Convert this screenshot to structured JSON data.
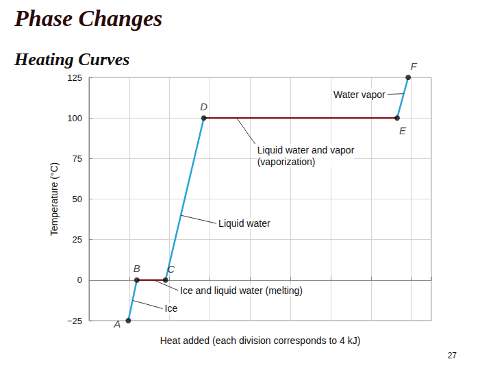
{
  "chart_data": {
    "type": "line",
    "title": "Phase Changes",
    "subtitle": "Heating Curves",
    "footer": "27",
    "x_label": "Heat added (each division corresponds to 4 kJ)",
    "y_label": "Temperature (°C)",
    "x": [
      3.9,
      4.75,
      7.6,
      11.4,
      30.6,
      31.7
    ],
    "values": [
      -25,
      0,
      0,
      100,
      100,
      125
    ],
    "point_labels": [
      "A",
      "B",
      "C",
      "D",
      "E",
      "F"
    ],
    "marker": "circle",
    "line_style": "solid",
    "segments": [
      {
        "name": "Ice",
        "color": "#29a3d9"
      },
      {
        "name": "Ice and liquid water (melting)",
        "color": "#8c1c24"
      },
      {
        "name": "Liquid water",
        "color": "#29a3d9"
      },
      {
        "name": "Liquid water and vapor\n(vaporization)",
        "color": "#8c1c24"
      },
      {
        "name": "Water vapor",
        "color": "#29a3d9"
      }
    ],
    "xlim": [
      0,
      34
    ],
    "xticks": [
      0,
      4,
      8,
      12,
      16,
      20,
      24,
      28,
      32
    ],
    "ylim": [
      -25,
      125
    ],
    "yticks": [
      {
        "value": -25,
        "label": "−25"
      },
      0,
      25,
      50,
      75,
      100,
      125
    ],
    "grid": true,
    "tick_labels": "y"
  }
}
